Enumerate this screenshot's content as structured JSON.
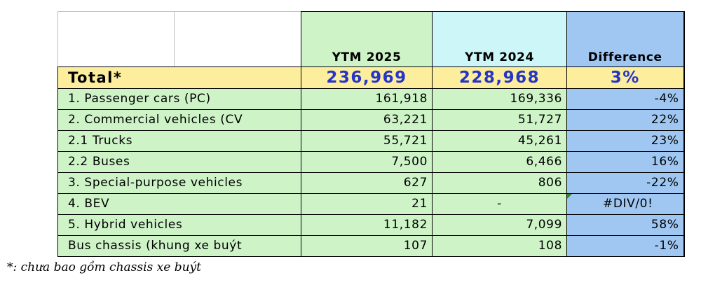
{
  "table": {
    "headers": {
      "ytm2025": "YTM 2025",
      "ytm2024": "YTM 2024",
      "difference": "Difference"
    },
    "total": {
      "label": "Total*",
      "ytm2025": "236,969",
      "ytm2024": "228,968",
      "difference": "3%"
    },
    "rows": [
      {
        "label": "1. Passenger cars (PC)",
        "ytm2025": "161,918",
        "ytm2024": "169,336",
        "difference": "-4%"
      },
      {
        "label": "2. Commercial vehicles (CV",
        "ytm2025": "63,221",
        "ytm2024": "51,727",
        "difference": "22%"
      },
      {
        "label": "2.1 Trucks",
        "ytm2025": "55,721",
        "ytm2024": "45,261",
        "difference": "23%"
      },
      {
        "label": "2.2 Buses",
        "ytm2025": "7,500",
        "ytm2024": "6,466",
        "difference": "16%"
      },
      {
        "label": "3. Special-purpose vehicles",
        "ytm2025": "627",
        "ytm2024": "806",
        "difference": "-22%"
      },
      {
        "label": "4. BEV",
        "ytm2025": "21",
        "ytm2024": "-",
        "difference": "#DIV/0!"
      },
      {
        "label": "5. Hybrid vehicles",
        "ytm2025": "11,182",
        "ytm2024": "7,099",
        "difference": "58%"
      },
      {
        "label": "Bus chassis (khung xe buýt",
        "ytm2025": "107",
        "ytm2024": "108",
        "difference": "-1%"
      }
    ]
  },
  "footnote": "*: chưa bao gồm chassis xe buýt",
  "colors": {
    "ytm2025_fill": "#cdf3c7",
    "ytm2024_fill": "#ccf6f7",
    "difference_fill": "#9fc7f2",
    "total_fill": "#fcee9c",
    "total_value_text": "#2534c9"
  }
}
